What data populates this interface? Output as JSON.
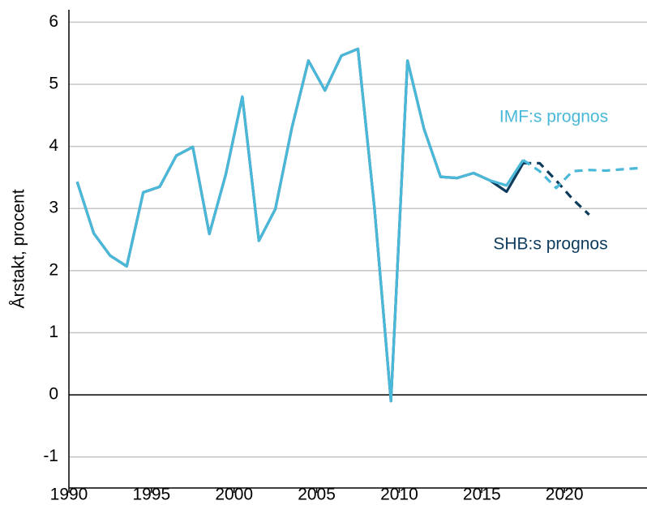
{
  "chart_data": {
    "type": "line",
    "y_label": "Årstakt, procent",
    "x": [
      1990.5,
      1991.5,
      1992.5,
      1993.5,
      1994.5,
      1995.5,
      1996.5,
      1997.5,
      1998.5,
      1999.5,
      2000.5,
      2001.5,
      2002.5,
      2003.5,
      2004.5,
      2005.5,
      2006.5,
      2007.5,
      2008.5,
      2009.5,
      2010.5,
      2011.5,
      2012.5,
      2013.5,
      2014.5,
      2015.5,
      2016.5,
      2017.5,
      2018.5,
      2019.5,
      2020.5,
      2021.5,
      2022.5,
      2023.5,
      2024.5
    ],
    "series": [
      {
        "name": "SHB:s prognos",
        "color": "#0d3b5c",
        "values": [
          3.43,
          2.6,
          2.24,
          2.07,
          3.26,
          3.35,
          3.85,
          3.99,
          2.59,
          3.55,
          4.8,
          2.48,
          2.99,
          4.3,
          5.38,
          4.9,
          5.46,
          5.57,
          3.0,
          -0.1,
          5.38,
          4.28,
          3.51,
          3.49,
          3.57,
          3.45,
          3.27,
          3.73,
          3.73,
          3.45,
          3.15,
          2.9,
          null,
          null,
          null
        ]
      },
      {
        "name": "IMF:s prognos",
        "color": "#4ab8d8",
        "values": [
          3.43,
          2.6,
          2.24,
          2.07,
          3.26,
          3.35,
          3.85,
          3.99,
          2.59,
          3.55,
          4.8,
          2.48,
          2.99,
          4.3,
          5.38,
          4.9,
          5.46,
          5.57,
          3.0,
          -0.1,
          5.38,
          4.28,
          3.51,
          3.49,
          3.57,
          3.45,
          3.37,
          3.78,
          3.6,
          3.33,
          3.6,
          3.62,
          3.61,
          3.63,
          3.65
        ]
      }
    ],
    "forecast_from": 2017.5,
    "xlim": [
      1990,
      2025
    ],
    "xticks": [
      1990,
      1995,
      2000,
      2005,
      2010,
      2015,
      2020
    ],
    "ylim": [
      -1.5,
      6.2
    ],
    "yticks": [
      -1,
      0,
      1,
      2,
      3,
      4,
      5,
      6
    ],
    "grid": true
  }
}
